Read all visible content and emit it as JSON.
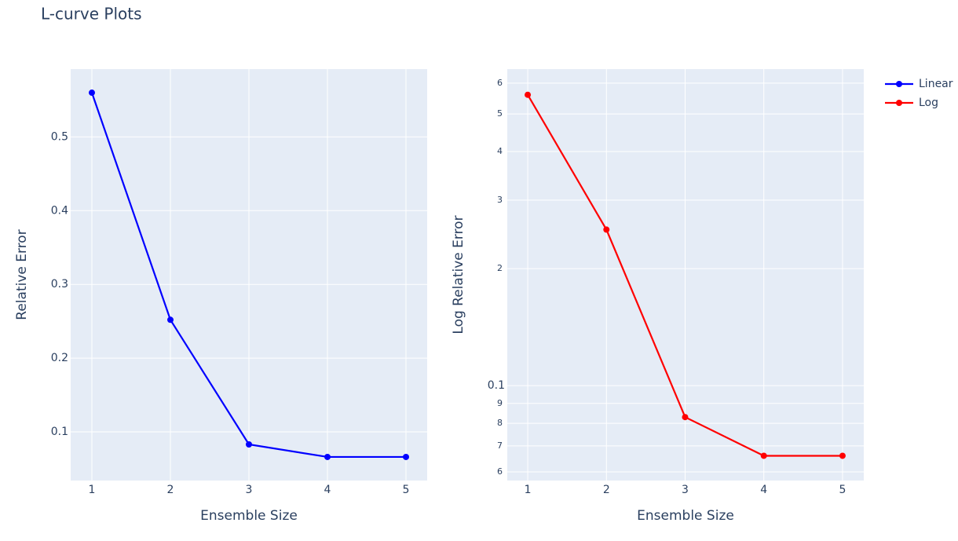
{
  "title": "L-curve Plots",
  "chart_data": [
    {
      "type": "line",
      "x_label": "Ensemble Size",
      "y_label": "Relative Error",
      "x": [
        1,
        2,
        3,
        4,
        5
      ],
      "series": [
        {
          "name": "Linear",
          "color": "#0000ff",
          "values": [
            0.56,
            0.252,
            0.083,
            0.066,
            0.066
          ]
        }
      ],
      "xlim": [
        0.73,
        5.27
      ],
      "ylim": [
        0.034,
        0.592
      ],
      "xticks": [
        1,
        2,
        3,
        4,
        5
      ],
      "yticks": [
        0.1,
        0.2,
        0.3,
        0.4,
        0.5
      ],
      "grid": true,
      "log_y": false
    },
    {
      "type": "line",
      "x_label": "Ensemble Size",
      "y_label": "Log Relative Error",
      "x": [
        1,
        2,
        3,
        4,
        5
      ],
      "series": [
        {
          "name": "Log",
          "color": "#ff0000",
          "values": [
            0.56,
            0.252,
            0.083,
            0.066,
            0.066
          ]
        }
      ],
      "xlim": [
        0.74,
        5.27
      ],
      "ylim": [
        0.057,
        0.652
      ],
      "xticks": [
        1,
        2,
        3,
        4,
        5
      ],
      "yticks": [
        {
          "value": 0.06,
          "label": "6"
        },
        {
          "value": 0.07,
          "label": "7"
        },
        {
          "value": 0.08,
          "label": "8"
        },
        {
          "value": 0.09,
          "label": "9"
        },
        0.1,
        {
          "value": 0.2,
          "label": "2"
        },
        {
          "value": 0.3,
          "label": "3"
        },
        {
          "value": 0.4,
          "label": "4"
        },
        {
          "value": 0.5,
          "label": "5"
        },
        {
          "value": 0.6,
          "label": "6"
        }
      ],
      "grid": true,
      "log_y": true
    }
  ]
}
